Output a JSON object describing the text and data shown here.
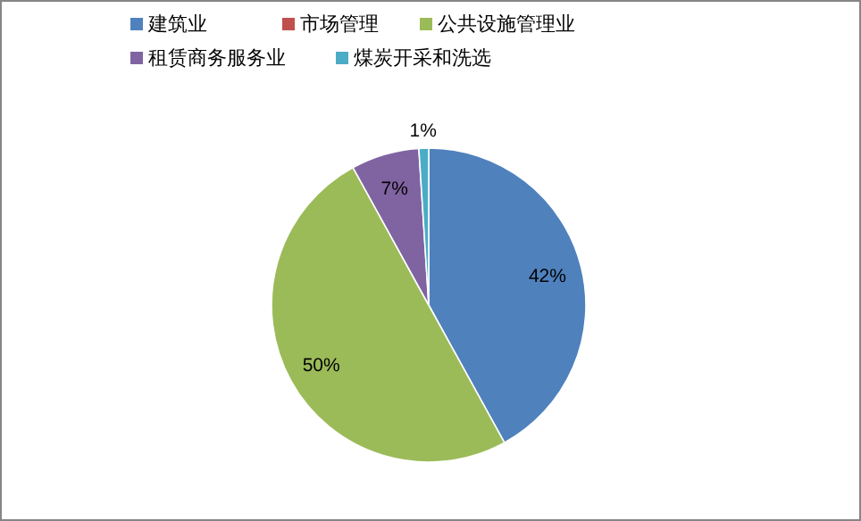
{
  "chart_data": {
    "type": "pie",
    "categories": [
      "建筑业",
      "市场管理",
      "公共设施管理业",
      "租赁商务服务业",
      "煤炭开采和洗选"
    ],
    "values": [
      42,
      0,
      50,
      7,
      1
    ],
    "colors": [
      "#4f81bd",
      "#c0504d",
      "#9bbb59",
      "#8064a2",
      "#4bacc6"
    ],
    "value_labels": [
      "42%",
      null,
      "50%",
      "7%",
      "1%"
    ],
    "legend": "top"
  }
}
